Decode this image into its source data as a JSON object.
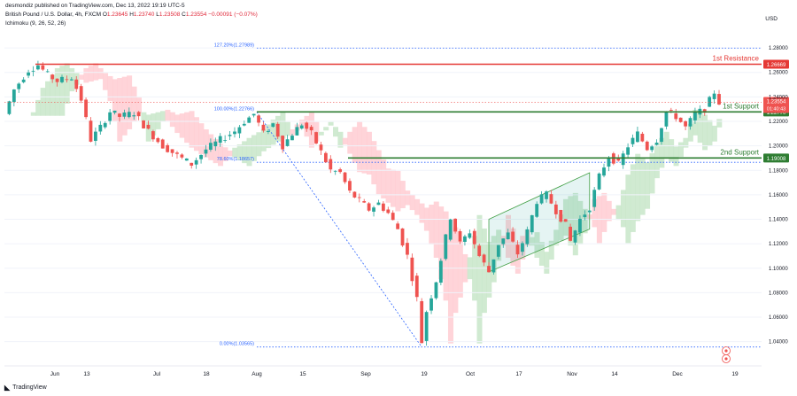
{
  "header": {
    "publisher": "desmondiz published on TradingView.com, Dec 13, 2022 19:19 UTC-5",
    "symbol": "British Pound / U.S. Dollar, 4h, FXCM",
    "o_label": "O",
    "o": "1.23645",
    "h_label": "H",
    "h": "1.23740",
    "l_label": "L",
    "l": "1.23508",
    "c_label": "C",
    "c": "1.23554",
    "change": "−0.00091 (−0.07%)",
    "indicator": "Ichimoku (9, 26, 52, 26)"
  },
  "currency": "USD",
  "footer_logo": "TradingView",
  "colors": {
    "bull": "#26a69a",
    "bear": "#ef5350",
    "resistance": "#e53935",
    "support": "#2e7d32",
    "fib": "#2962ff",
    "cloud_bull": "#c8e6c9",
    "cloud_bear": "#ffcdd2"
  },
  "chart_data": {
    "type": "candlestick",
    "ylim": [
      1.026,
      1.296
    ],
    "y_ticks": [
      "1.28000",
      "1.26000",
      "1.24000",
      "1.22000",
      "1.20000",
      "1.18000",
      "1.16000",
      "1.14000",
      "1.12000",
      "1.10000",
      "1.08000",
      "1.06000",
      "1.04000"
    ],
    "x_ticks": [
      "Jun",
      "13",
      "Jul",
      "18",
      "Aug",
      "15",
      "Sep",
      "19",
      "Oct",
      "17",
      "Nov",
      "14",
      "Dec",
      "19"
    ],
    "levels": [
      {
        "label": "1st Resistance",
        "value": 1.26669,
        "value_text": "1.26669",
        "color": "resistance"
      },
      {
        "label": "1st Support",
        "value": 1.2277,
        "value_text": "1.22770",
        "color": "support"
      },
      {
        "label": "2nd Support",
        "value": 1.19008,
        "value_text": "1.19008",
        "color": "support"
      }
    ],
    "fibonacci": [
      {
        "label": "127.20%(1.27989)",
        "value": 1.27989
      },
      {
        "label": "100.00%(1.22766)",
        "value": 1.22766
      },
      {
        "label": "78.60%(1.18657)",
        "value": 1.18657
      },
      {
        "label": "0.00%(1.03565)",
        "value": 1.03565
      }
    ],
    "current_price": {
      "value": 1.23554,
      "value_text": "1.23554",
      "countdown": "01:40:43"
    },
    "anchors": [
      {
        "t": 0,
        "v": 1.226
      },
      {
        "t": 2,
        "v": 1.246
      },
      {
        "t": 5,
        "v": 1.262
      },
      {
        "t": 7,
        "v": 1.266
      },
      {
        "t": 9,
        "v": 1.258
      },
      {
        "t": 11,
        "v": 1.253
      },
      {
        "t": 14,
        "v": 1.256
      },
      {
        "t": 16,
        "v": 1.238
      },
      {
        "t": 18,
        "v": 1.205
      },
      {
        "t": 20,
        "v": 1.215
      },
      {
        "t": 22,
        "v": 1.228
      },
      {
        "t": 24,
        "v": 1.224
      },
      {
        "t": 27,
        "v": 1.227
      },
      {
        "t": 30,
        "v": 1.212
      },
      {
        "t": 33,
        "v": 1.2
      },
      {
        "t": 36,
        "v": 1.192
      },
      {
        "t": 39,
        "v": 1.185
      },
      {
        "t": 42,
        "v": 1.197
      },
      {
        "t": 45,
        "v": 1.205
      },
      {
        "t": 48,
        "v": 1.212
      },
      {
        "t": 50,
        "v": 1.22
      },
      {
        "t": 52,
        "v": 1.226
      },
      {
        "t": 54,
        "v": 1.21
      },
      {
        "t": 56,
        "v": 1.218
      },
      {
        "t": 58,
        "v": 1.2
      },
      {
        "t": 60,
        "v": 1.21
      },
      {
        "t": 62,
        "v": 1.218
      },
      {
        "t": 64,
        "v": 1.21
      },
      {
        "t": 66,
        "v": 1.195
      },
      {
        "t": 68,
        "v": 1.18
      },
      {
        "t": 70,
        "v": 1.178
      },
      {
        "t": 72,
        "v": 1.162
      },
      {
        "t": 74,
        "v": 1.155
      },
      {
        "t": 76,
        "v": 1.148
      },
      {
        "t": 78,
        "v": 1.153
      },
      {
        "t": 80,
        "v": 1.145
      },
      {
        "t": 82,
        "v": 1.132
      },
      {
        "t": 84,
        "v": 1.11
      },
      {
        "t": 86,
        "v": 1.075
      },
      {
        "t": 87,
        "v": 1.04
      },
      {
        "t": 88,
        "v": 1.065
      },
      {
        "t": 90,
        "v": 1.09
      },
      {
        "t": 92,
        "v": 1.125
      },
      {
        "t": 93,
        "v": 1.142
      },
      {
        "t": 95,
        "v": 1.12
      },
      {
        "t": 97,
        "v": 1.13
      },
      {
        "t": 99,
        "v": 1.11
      },
      {
        "t": 101,
        "v": 1.097
      },
      {
        "t": 103,
        "v": 1.12
      },
      {
        "t": 105,
        "v": 1.128
      },
      {
        "t": 107,
        "v": 1.112
      },
      {
        "t": 109,
        "v": 1.13
      },
      {
        "t": 111,
        "v": 1.155
      },
      {
        "t": 113,
        "v": 1.16
      },
      {
        "t": 115,
        "v": 1.147
      },
      {
        "t": 117,
        "v": 1.135
      },
      {
        "t": 118,
        "v": 1.122
      },
      {
        "t": 120,
        "v": 1.14
      },
      {
        "t": 122,
        "v": 1.15
      },
      {
        "t": 124,
        "v": 1.175
      },
      {
        "t": 126,
        "v": 1.192
      },
      {
        "t": 128,
        "v": 1.185
      },
      {
        "t": 130,
        "v": 1.2
      },
      {
        "t": 132,
        "v": 1.21
      },
      {
        "t": 134,
        "v": 1.198
      },
      {
        "t": 136,
        "v": 1.205
      },
      {
        "t": 138,
        "v": 1.228
      },
      {
        "t": 140,
        "v": 1.224
      },
      {
        "t": 142,
        "v": 1.215
      },
      {
        "t": 144,
        "v": 1.226
      },
      {
        "t": 146,
        "v": 1.23
      },
      {
        "t": 148,
        "v": 1.244
      },
      {
        "t": 149,
        "v": 1.2355
      }
    ]
  }
}
